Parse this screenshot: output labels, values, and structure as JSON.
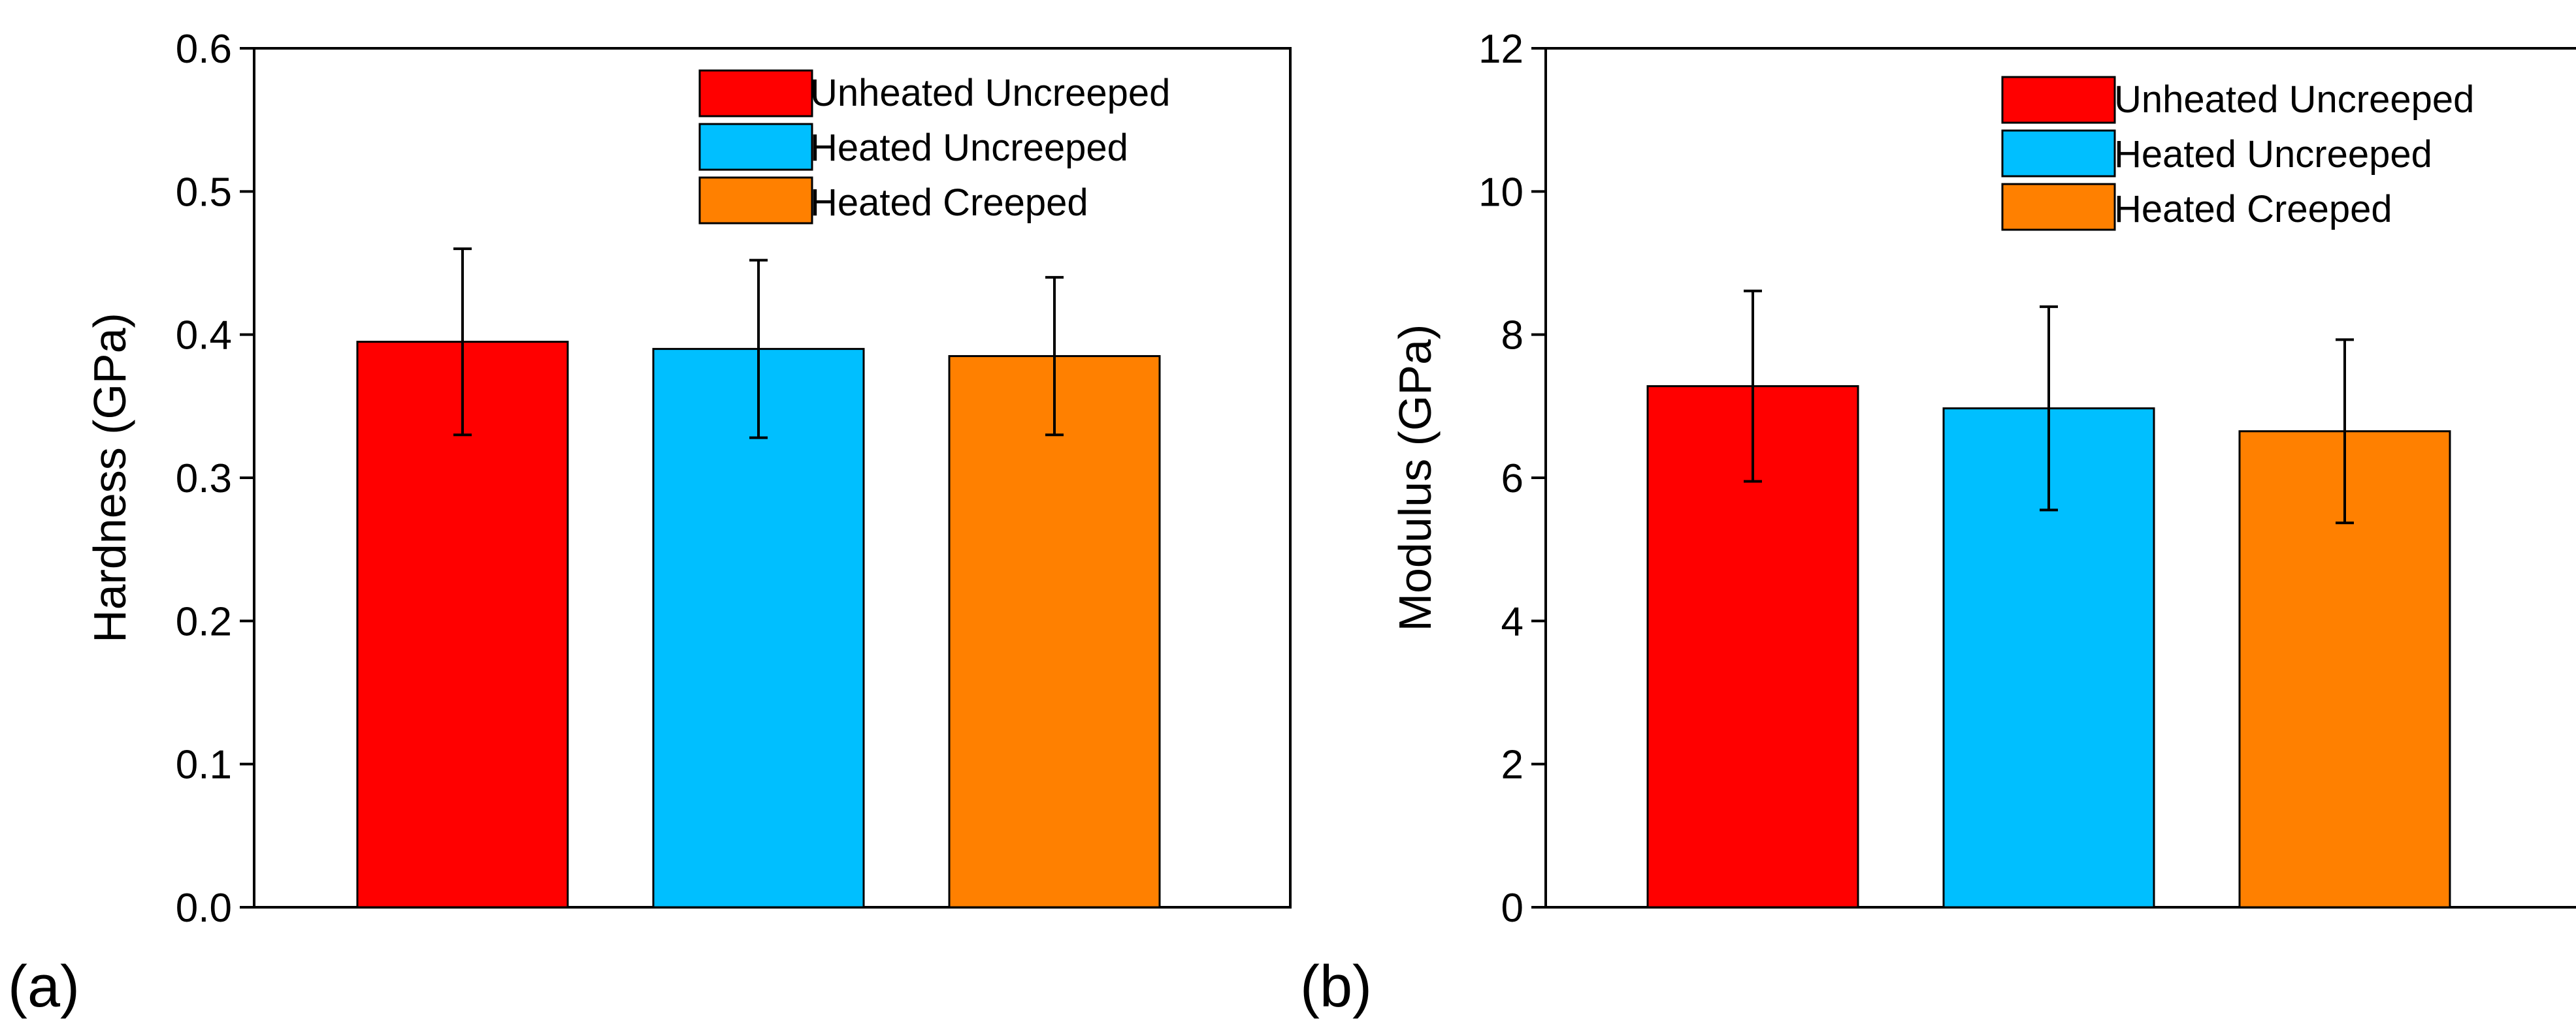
{
  "chart_data": [
    {
      "type": "bar",
      "panel_label": "(a)",
      "categories": [
        "Unheated Uncreeped",
        "Heated Uncreeped",
        "Heated Creeped"
      ],
      "values": [
        0.395,
        0.39,
        0.385
      ],
      "errors": [
        0.065,
        0.062,
        0.055
      ],
      "colors": [
        "#ff0000",
        "#00bfff",
        "#ff8000"
      ],
      "xlabel": "",
      "ylabel": "Hardness (GPa)",
      "ylim": [
        0,
        0.6
      ],
      "yticks": [
        0.0,
        0.1,
        0.2,
        0.3,
        0.4,
        0.5,
        0.6
      ],
      "ytick_labels": [
        "0.0",
        "0.1",
        "0.2",
        "0.3",
        "0.4",
        "0.5",
        "0.6"
      ],
      "grid": false,
      "legend": {
        "position": "top-right",
        "entries": [
          "Unheated Uncreeped",
          "Heated Uncreeped",
          "Heated Creeped"
        ]
      }
    },
    {
      "type": "bar",
      "panel_label": "(b)",
      "categories": [
        "Unheated Uncreeped",
        "Heated Uncreeped",
        "Heated Creeped"
      ],
      "values": [
        7.28,
        6.97,
        6.65
      ],
      "errors": [
        1.33,
        1.42,
        1.28
      ],
      "colors": [
        "#ff0000",
        "#00bfff",
        "#ff8000"
      ],
      "xlabel": "",
      "ylabel": "Modulus (GPa)",
      "ylim": [
        0,
        12
      ],
      "yticks": [
        0,
        2,
        4,
        6,
        8,
        10,
        12
      ],
      "ytick_labels": [
        "0",
        "2",
        "4",
        "6",
        "8",
        "10",
        "12"
      ],
      "grid": false,
      "legend": {
        "position": "top-right",
        "entries": [
          "Unheated Uncreeped",
          "Heated Uncreeped",
          "Heated Creeped"
        ]
      }
    }
  ]
}
